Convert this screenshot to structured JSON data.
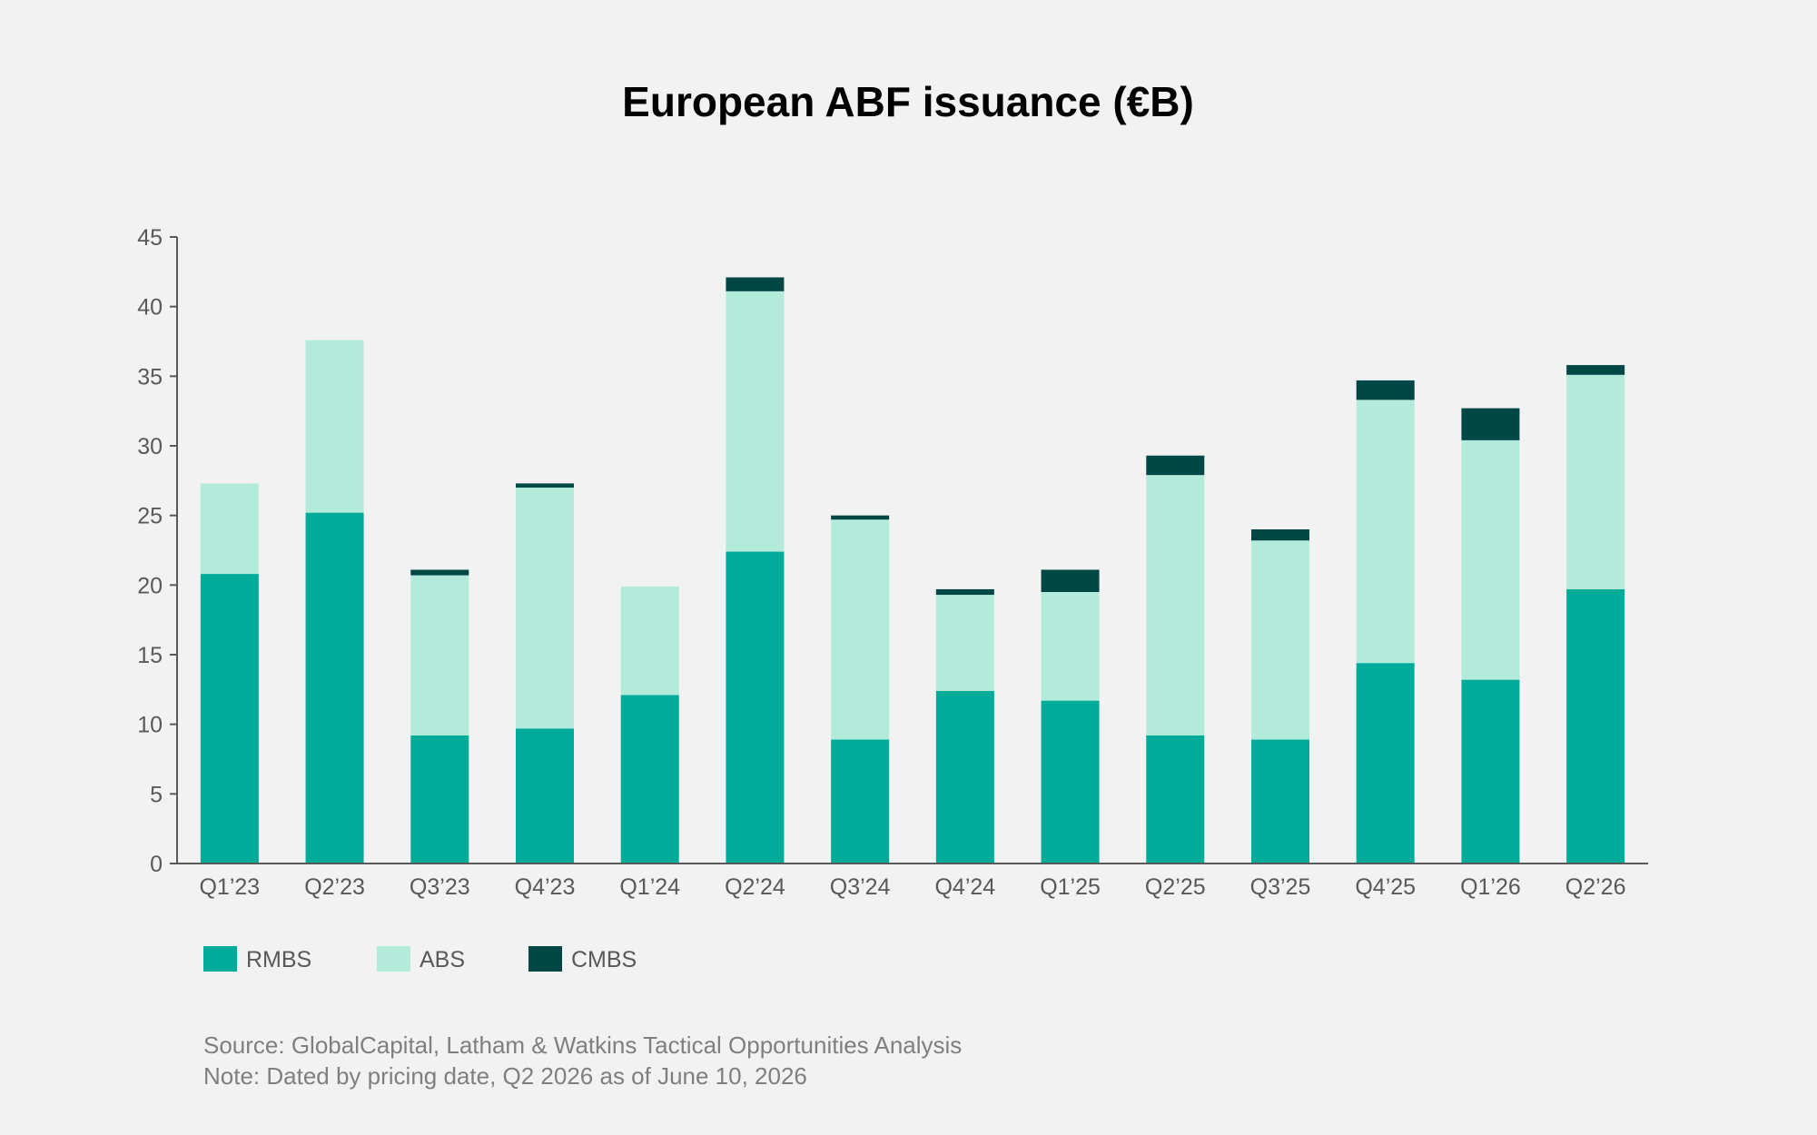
{
  "chart_data": {
    "type": "bar",
    "stacked": true,
    "title": "European ABF issuance (€B)",
    "xlabel": "",
    "ylabel": "",
    "ylim": [
      0,
      45
    ],
    "y_ticks": [
      0,
      5,
      10,
      15,
      20,
      25,
      30,
      35,
      40,
      45
    ],
    "grid": false,
    "legend_position": "bottom-left",
    "categories": [
      "Q1’23",
      "Q2’23",
      "Q3’23",
      "Q4’23",
      "Q1’24",
      "Q2’24",
      "Q3’24",
      "Q4’24",
      "Q1’25",
      "Q2’25",
      "Q3’25",
      "Q4’25",
      "Q1’26",
      "Q2’26"
    ],
    "series": [
      {
        "name": "RMBS",
        "color": "#00ab9a",
        "values": [
          20.8,
          25.2,
          9.2,
          9.7,
          12.1,
          22.4,
          8.9,
          12.4,
          11.7,
          9.2,
          8.9,
          14.4,
          13.2,
          19.7
        ]
      },
      {
        "name": "ABS",
        "color": "#b3ebda",
        "values": [
          6.5,
          12.4,
          11.5,
          17.3,
          7.8,
          18.7,
          15.8,
          6.9,
          7.8,
          18.7,
          14.3,
          18.9,
          17.2,
          15.4
        ]
      },
      {
        "name": "CMBS",
        "color": "#004745",
        "values": [
          0.0,
          0.0,
          0.4,
          0.3,
          0.0,
          1.0,
          0.3,
          0.4,
          1.6,
          1.4,
          0.8,
          1.4,
          2.3,
          0.7
        ]
      }
    ],
    "notes": [
      "Source: GlobalCapital, Latham & Watkins Tactical Opportunities Analysis",
      "Note: Dated by pricing date, Q2 2026 as of June 10, 2026"
    ]
  },
  "colors": {
    "background": "#f2f2f2",
    "axis": "#595959",
    "title": "#000000",
    "note": "#7f7f7f"
  }
}
